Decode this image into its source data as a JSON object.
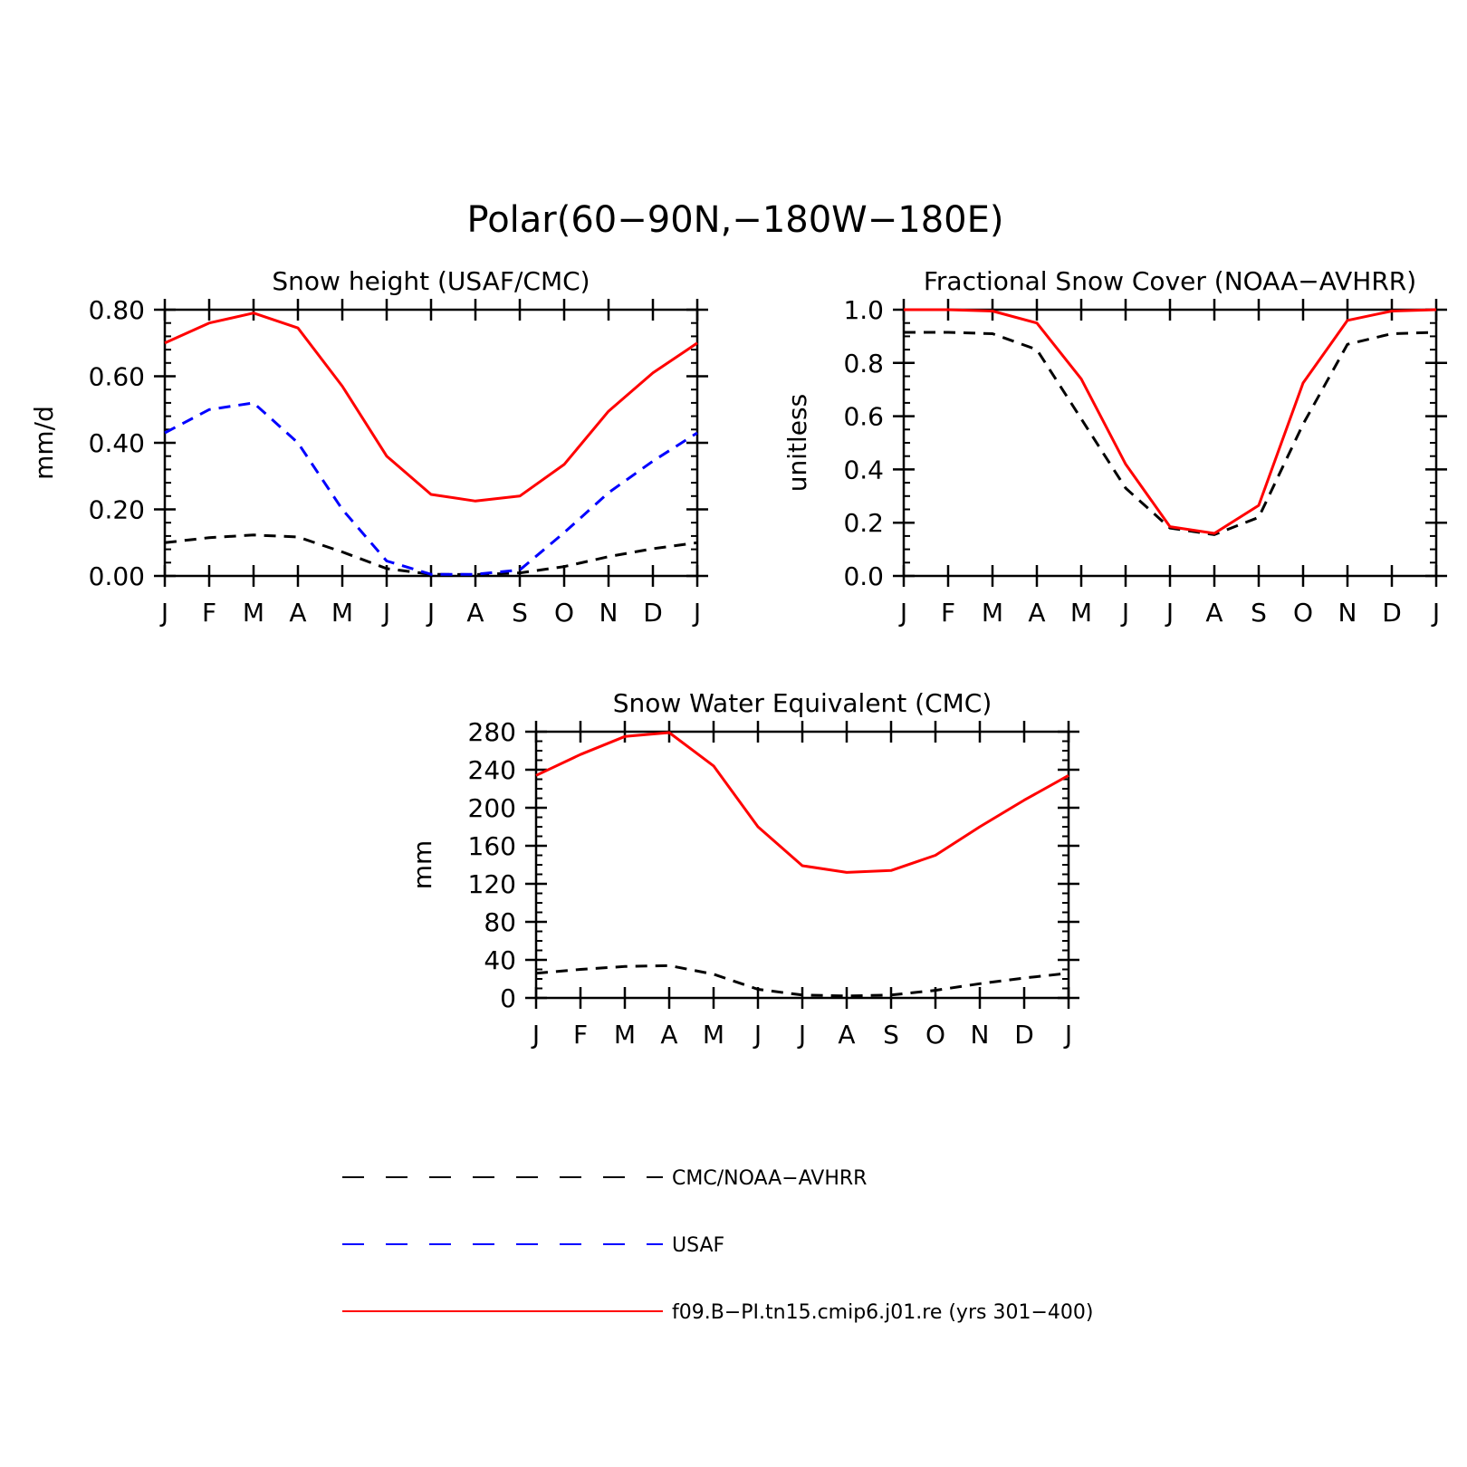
{
  "figure": {
    "title": "Polar(60−90N,−180W−180E)"
  },
  "legend": {
    "entries": [
      {
        "label": "CMC/NOAA−AVHRR",
        "color": "#000000",
        "style": "dashed"
      },
      {
        "label": "USAF",
        "color": "#0000ff",
        "style": "dashed"
      },
      {
        "label": "f09.B−PI.tn15.cmip6.j01.re (yrs 301−400)",
        "color": "#ff0000",
        "style": "solid"
      }
    ]
  },
  "chart_data": [
    {
      "type": "line",
      "title": "Snow height (USAF/CMC)",
      "xlabel": "",
      "ylabel": "mm/d",
      "categories": [
        "J",
        "F",
        "M",
        "A",
        "M",
        "J",
        "J",
        "A",
        "S",
        "O",
        "N",
        "D",
        "J"
      ],
      "ylim": [
        0,
        0.8
      ],
      "yticks": [
        "0.00",
        "0.20",
        "0.40",
        "0.60",
        "0.80"
      ],
      "yminor_per_major": 5,
      "grid": false,
      "series": [
        {
          "name": "CMC/NOAA−AVHRR",
          "color": "#000000",
          "style": "dashed",
          "values": [
            0.1,
            0.115,
            0.123,
            0.117,
            0.072,
            0.022,
            0.005,
            0.004,
            0.009,
            0.028,
            0.058,
            0.082,
            0.1
          ]
        },
        {
          "name": "USAF",
          "color": "#0000ff",
          "style": "dashed",
          "values": [
            0.43,
            0.5,
            0.52,
            0.4,
            0.2,
            0.045,
            0.005,
            0.005,
            0.018,
            0.13,
            0.25,
            0.345,
            0.43
          ]
        },
        {
          "name": "f09.B−PI.tn15.cmip6.j01.re (yrs 301−400)",
          "color": "#ff0000",
          "style": "solid",
          "values": [
            0.7,
            0.76,
            0.79,
            0.745,
            0.57,
            0.36,
            0.245,
            0.225,
            0.24,
            0.335,
            0.495,
            0.61,
            0.7
          ]
        }
      ]
    },
    {
      "type": "line",
      "title": "Fractional Snow Cover (NOAA−AVHRR)",
      "xlabel": "",
      "ylabel": "unitless",
      "categories": [
        "J",
        "F",
        "M",
        "A",
        "M",
        "J",
        "J",
        "A",
        "S",
        "O",
        "N",
        "D",
        "J"
      ],
      "ylim": [
        0,
        1.0
      ],
      "yticks": [
        "0.0",
        "0.2",
        "0.4",
        "0.6",
        "0.8",
        "1.0"
      ],
      "yminor_per_major": 4,
      "grid": false,
      "series": [
        {
          "name": "CMC/NOAA−AVHRR",
          "color": "#000000",
          "style": "dashed",
          "values": [
            0.915,
            0.915,
            0.91,
            0.85,
            0.59,
            0.33,
            0.18,
            0.155,
            0.22,
            0.57,
            0.87,
            0.91,
            0.915
          ]
        },
        {
          "name": "f09.B−PI.tn15.cmip6.j01.re (yrs 301−400)",
          "color": "#ff0000",
          "style": "solid",
          "values": [
            1.0,
            1.0,
            0.995,
            0.95,
            0.74,
            0.42,
            0.185,
            0.16,
            0.265,
            0.725,
            0.96,
            0.995,
            1.0
          ]
        }
      ]
    },
    {
      "type": "line",
      "title": "Snow Water Equivalent (CMC)",
      "xlabel": "",
      "ylabel": "mm",
      "categories": [
        "J",
        "F",
        "M",
        "A",
        "M",
        "J",
        "J",
        "A",
        "S",
        "O",
        "N",
        "D",
        "J"
      ],
      "ylim": [
        0,
        280
      ],
      "yticks": [
        "0",
        "40",
        "80",
        "120",
        "160",
        "200",
        "240",
        "280"
      ],
      "yminor_per_major": 4,
      "grid": false,
      "series": [
        {
          "name": "CMC/NOAA−AVHRR",
          "color": "#000000",
          "style": "dashed",
          "values": [
            26,
            30,
            33,
            34,
            25,
            9,
            3,
            2,
            3,
            8,
            15,
            21,
            26
          ]
        },
        {
          "name": "f09.B−PI.tn15.cmip6.j01.re (yrs 301−400)",
          "color": "#ff0000",
          "style": "solid",
          "values": [
            234,
            256,
            275,
            279,
            244,
            180,
            139,
            132,
            134,
            150,
            180,
            208,
            234
          ]
        }
      ]
    }
  ]
}
